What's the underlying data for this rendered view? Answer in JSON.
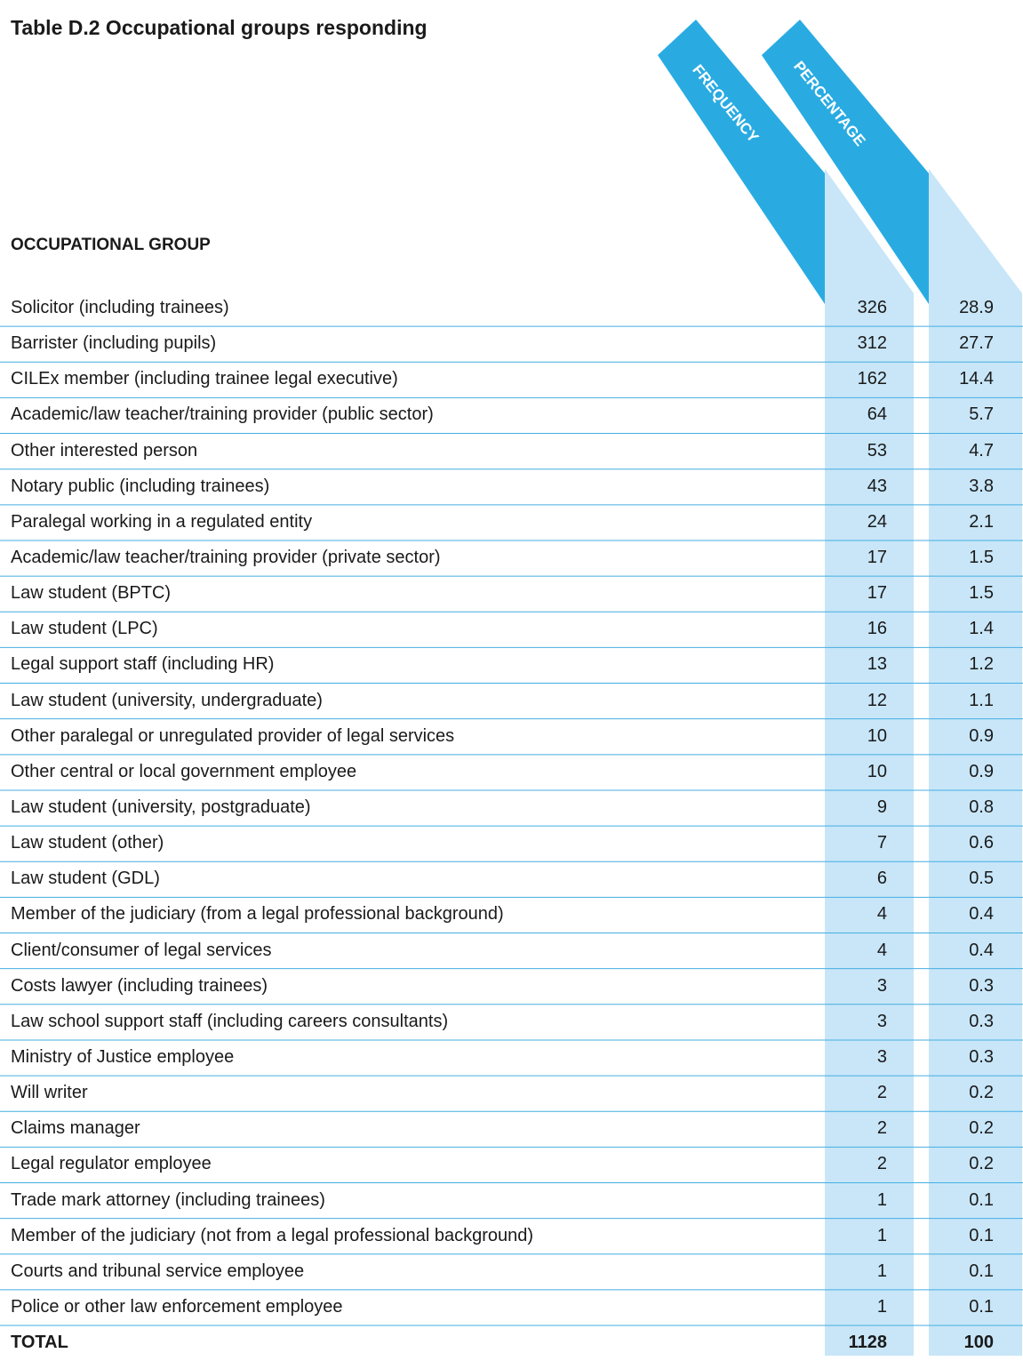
{
  "header": {
    "title": "Table D.2 Occupational groups responding",
    "columns": [
      "FREQUENCY",
      "PERCENTAGE"
    ],
    "group_label": "OCCUPATIONAL GROUP"
  },
  "table": {
    "rows": [
      [
        "Solicitor (including trainees)",
        326,
        28.9
      ],
      [
        "Barrister (including pupils)",
        312,
        27.7
      ],
      [
        "CILEx member (including trainee legal executive)",
        162,
        14.4
      ],
      [
        "Academic/law teacher/training provider (public sector)",
        64,
        5.7
      ],
      [
        "Other interested person",
        53,
        4.7
      ],
      [
        "Notary public (including trainees)",
        43,
        3.8
      ],
      [
        "Paralegal working in a regulated entity",
        24,
        2.1
      ],
      [
        "Academic/law teacher/training provider (private sector)",
        17,
        1.5
      ],
      [
        "Law student (BPTC)",
        17,
        1.5
      ],
      [
        "Law student (LPC)",
        16,
        1.4
      ],
      [
        "Legal support staff (including HR)",
        13,
        1.2
      ],
      [
        "Law student (university, undergraduate)",
        12,
        1.1
      ],
      [
        "Other paralegal or unregulated provider of legal services",
        10,
        0.9
      ],
      [
        "Other central or local government employee",
        10,
        0.9
      ],
      [
        "Law student (university, postgraduate)",
        9,
        0.8
      ],
      [
        "Law student (other)",
        7,
        0.6
      ],
      [
        "Law student (GDL)",
        6,
        0.5
      ],
      [
        "Member of the judiciary (from a legal professional background)",
        4,
        0.4
      ],
      [
        "Client/consumer of legal services",
        4,
        0.4
      ],
      [
        "Costs lawyer (including trainees)",
        3,
        0.3
      ],
      [
        "Law school support staff (including careers consultants)",
        3,
        0.3
      ],
      [
        "Ministry of Justice employee",
        3,
        0.3
      ],
      [
        "Will writer",
        2,
        0.2
      ],
      [
        "Claims manager",
        2,
        0.2
      ],
      [
        "Legal regulator employee",
        2,
        0.2
      ],
      [
        "Trade mark attorney (including trainees)",
        1,
        0.1
      ],
      [
        "Member of the judiciary (not from a legal professional background)",
        1,
        0.1
      ],
      [
        "Courts and tribunal service employee",
        1,
        0.1
      ],
      [
        "Police or other law enforcement employee",
        1,
        0.1
      ]
    ],
    "total": [
      "TOTAL",
      1128,
      100
    ]
  }
}
